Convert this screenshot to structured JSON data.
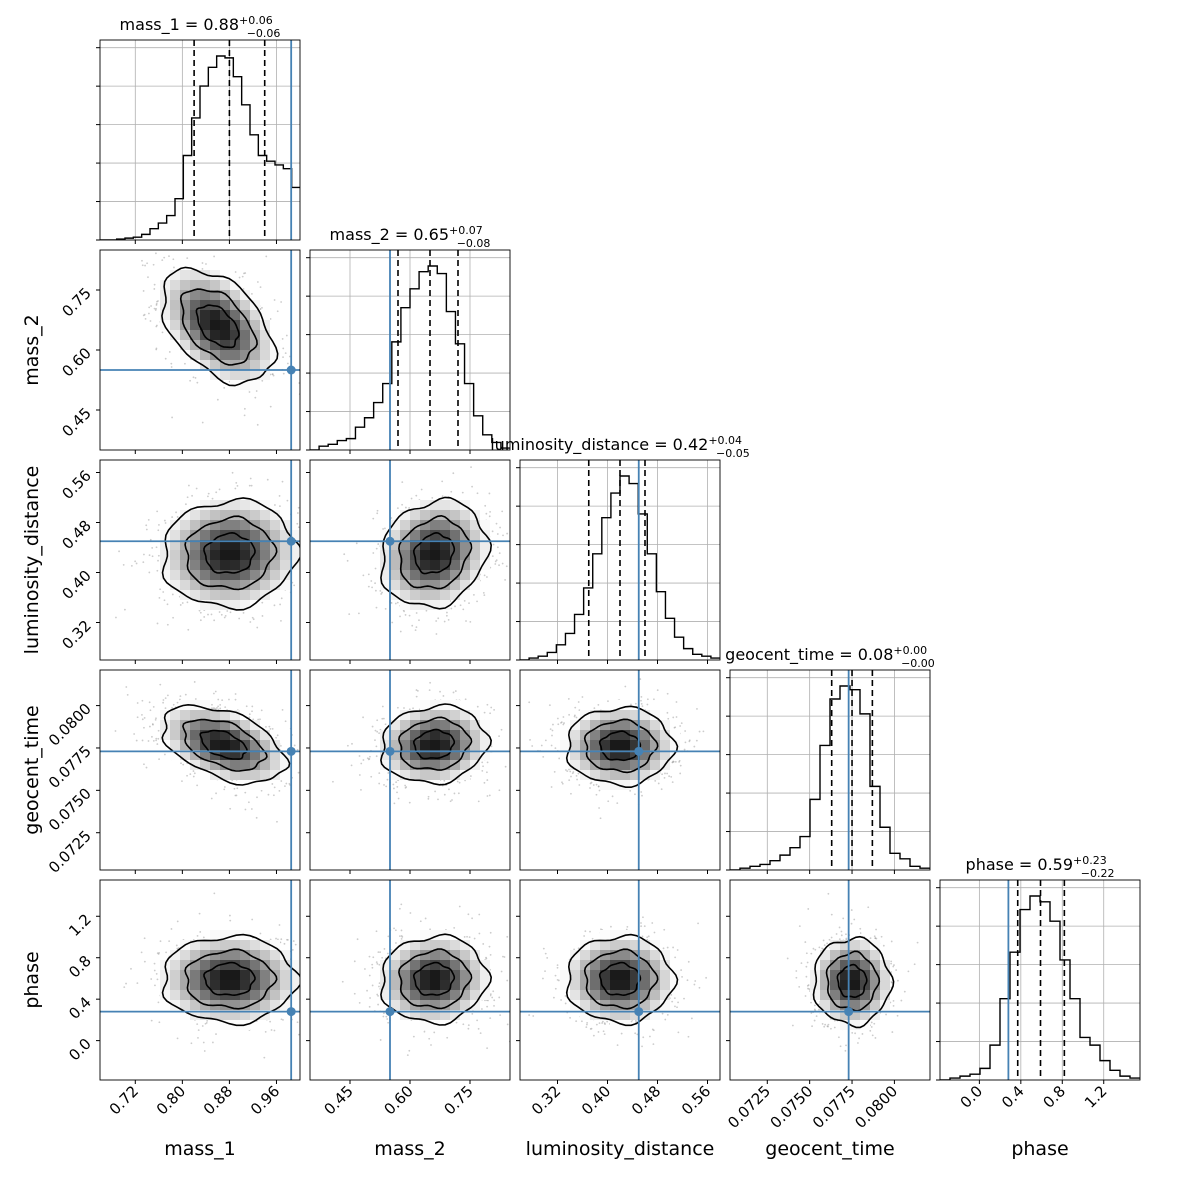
{
  "chart_data": {
    "type": "corner",
    "parameters": [
      {
        "key": "mass_1",
        "label": "mass_1",
        "range": [
          0.66,
          1.0
        ],
        "ticks": [
          0.72,
          0.8,
          0.88,
          0.96
        ],
        "tick_labels": [
          "0.72",
          "0.80",
          "0.88",
          "0.96"
        ],
        "truth": 0.985,
        "quantiles": [
          0.82,
          0.88,
          0.94
        ],
        "title": {
          "main": "mass_1 = 0.88",
          "sup": "+0.06",
          "sub": "−0.06"
        }
      },
      {
        "key": "mass_2",
        "label": "mass_2",
        "range": [
          0.35,
          0.85
        ],
        "ticks": [
          0.45,
          0.6,
          0.75
        ],
        "tick_labels": [
          "0.45",
          "0.60",
          "0.75"
        ],
        "truth": 0.55,
        "quantiles": [
          0.57,
          0.65,
          0.72
        ],
        "title": {
          "main": "mass_2 = 0.65",
          "sup": "+0.07",
          "sub": "−0.08"
        }
      },
      {
        "key": "luminosity_distance",
        "label": "luminosity_distance",
        "range": [
          0.26,
          0.58
        ],
        "ticks": [
          0.32,
          0.4,
          0.48,
          0.56
        ],
        "tick_labels": [
          "0.32",
          "0.40",
          "0.48",
          "0.56"
        ],
        "truth": 0.45,
        "quantiles": [
          0.37,
          0.42,
          0.46
        ],
        "title": {
          "main": "luminosity_distance = 0.42",
          "sup": "+0.04",
          "sub": "−0.05"
        }
      },
      {
        "key": "geocent_time",
        "label": "geocent_time",
        "range": [
          0.0703,
          0.0821
        ],
        "ticks": [
          0.0725,
          0.075,
          0.0775,
          0.08
        ],
        "tick_labels": [
          "0.0725",
          "0.0750",
          "0.0775",
          "0.0800"
        ],
        "truth": 0.0773,
        "quantiles": [
          0.0763,
          0.0775,
          0.0787
        ],
        "title": {
          "main": "geocent_time = 0.08",
          "sup": "+0.00",
          "sub": "−0.00"
        }
      },
      {
        "key": "phase",
        "label": "phase",
        "range": [
          -0.38,
          1.55
        ],
        "ticks": [
          0.0,
          0.4,
          0.8,
          1.2
        ],
        "tick_labels": [
          "0.0",
          "0.4",
          "0.8",
          "1.2"
        ],
        "truth": 0.28,
        "quantiles": [
          0.37,
          0.59,
          0.82
        ],
        "title": {
          "main": "phase = 0.59",
          "sup": "+0.23",
          "sub": "−0.22"
        }
      }
    ],
    "histograms": {
      "mass_1": [
        0,
        0,
        0.005,
        0.01,
        0.015,
        0.03,
        0.06,
        0.09,
        0.13,
        0.22,
        0.45,
        0.65,
        0.82,
        0.92,
        0.98,
        0.97,
        0.87,
        0.72,
        0.56,
        0.45,
        0.42,
        0.4,
        0.38,
        0.28
      ],
      "mass_2": [
        0,
        0.02,
        0.03,
        0.05,
        0.06,
        0.12,
        0.17,
        0.25,
        0.35,
        0.57,
        0.75,
        0.85,
        0.94,
        0.97,
        0.93,
        0.73,
        0.56,
        0.35,
        0.18,
        0.08,
        0.04,
        0.01
      ],
      "luminosity_distance": [
        0,
        0.01,
        0.02,
        0.04,
        0.08,
        0.14,
        0.24,
        0.38,
        0.56,
        0.75,
        0.88,
        0.97,
        0.93,
        0.77,
        0.56,
        0.36,
        0.22,
        0.12,
        0.06,
        0.03,
        0.02,
        0.01
      ],
      "geocent_time": [
        0,
        0.01,
        0.02,
        0.03,
        0.05,
        0.08,
        0.12,
        0.18,
        0.38,
        0.67,
        0.92,
        0.99,
        0.97,
        0.84,
        0.45,
        0.23,
        0.09,
        0.06,
        0.02,
        0.01
      ],
      "phase": [
        0,
        0.01,
        0.02,
        0.03,
        0.06,
        0.18,
        0.42,
        0.66,
        0.88,
        0.95,
        0.92,
        0.82,
        0.62,
        0.42,
        0.22,
        0.18,
        0.1,
        0.05,
        0.02,
        0.01
      ]
    },
    "pairs": [
      {
        "x": "mass_1",
        "y": "mass_2",
        "mean": [
          0.86,
          0.66
        ],
        "sd": [
          0.05,
          0.075
        ],
        "rho": -0.45
      },
      {
        "x": "mass_1",
        "y": "luminosity_distance",
        "mean": [
          0.88,
          0.43
        ],
        "sd": [
          0.06,
          0.045
        ],
        "rho": 0.05
      },
      {
        "x": "mass_2",
        "y": "luminosity_distance",
        "mean": [
          0.66,
          0.43
        ],
        "sd": [
          0.07,
          0.045
        ],
        "rho": 0.15
      },
      {
        "x": "mass_1",
        "y": "geocent_time",
        "mean": [
          0.87,
          0.0777
        ],
        "sd": [
          0.055,
          0.0012
        ],
        "rho": -0.45
      },
      {
        "x": "mass_2",
        "y": "geocent_time",
        "mean": [
          0.66,
          0.0777
        ],
        "sd": [
          0.07,
          0.0012
        ],
        "rho": 0.1
      },
      {
        "x": "luminosity_distance",
        "y": "geocent_time",
        "mean": [
          0.42,
          0.0776
        ],
        "sd": [
          0.045,
          0.0012
        ],
        "rho": 0.0
      },
      {
        "x": "mass_1",
        "y": "phase",
        "mean": [
          0.88,
          0.59
        ],
        "sd": [
          0.06,
          0.22
        ],
        "rho": 0.0
      },
      {
        "x": "mass_2",
        "y": "phase",
        "mean": [
          0.66,
          0.59
        ],
        "sd": [
          0.07,
          0.22
        ],
        "rho": 0.05
      },
      {
        "x": "luminosity_distance",
        "y": "phase",
        "mean": [
          0.42,
          0.59
        ],
        "sd": [
          0.045,
          0.22
        ],
        "rho": 0.0
      },
      {
        "x": "geocent_time",
        "y": "phase",
        "mean": [
          0.0775,
          0.57
        ],
        "sd": [
          0.0012,
          0.22
        ],
        "rho": 0.0
      }
    ],
    "truth_color": "#4682b4",
    "contour_color": "#000000",
    "grid": true
  }
}
